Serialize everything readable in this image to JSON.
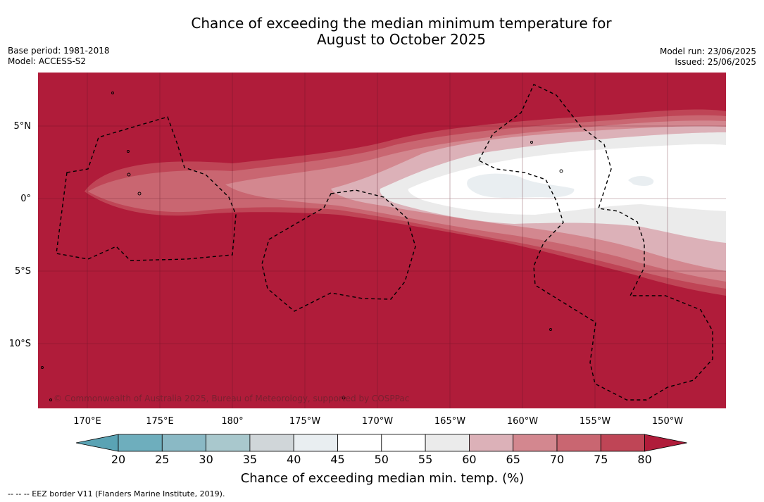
{
  "title_line1": "Chance of exceeding the median minimum temperature for",
  "title_line2": "August to October 2025",
  "meta_left": [
    "Base period: 1981-2018",
    "Model: ACCESS-S2"
  ],
  "meta_right": [
    "Model run: 23/06/2025",
    "Issued: 25/06/2025"
  ],
  "lon_labels": [
    "170°E",
    "175°E",
    "180°",
    "175°W",
    "170°W",
    "165°W",
    "160°W",
    "155°W",
    "150°W"
  ],
  "lat_labels": [
    "5°N",
    "0°",
    "5°S",
    "10°S"
  ],
  "copyright": "© Commonwealth of Australia 2025, Bureau of Meteorology, supported by COSPPac",
  "colorbar": {
    "title": "Chance of exceeding median min. temp. (%)",
    "ticks": [
      "20",
      "25",
      "30",
      "35",
      "40",
      "45",
      "50",
      "55",
      "60",
      "65",
      "70",
      "75",
      "80"
    ],
    "colors": [
      "#5aa3b4",
      "#6eaebd",
      "#8ab9c5",
      "#a9c8cd",
      "#d0d6d9",
      "#e9eef1",
      "#ffffff",
      "#ffffff",
      "#ebebeb",
      "#dcb1b8",
      "#d3878f",
      "#c96671",
      "#bf4556",
      "#b01c3a"
    ]
  },
  "colors": {
    "high": "#b01c3a",
    "c75": "#bf4556",
    "c70": "#c96671",
    "c65": "#d3878f",
    "c60": "#dcb1b8",
    "c55": "#ebebeb",
    "c50": "#ffffff",
    "c45": "#e9eef1"
  },
  "footnote": "--  --  -- EEZ border V11 (Flanders Marine Institute, 2019)."
}
